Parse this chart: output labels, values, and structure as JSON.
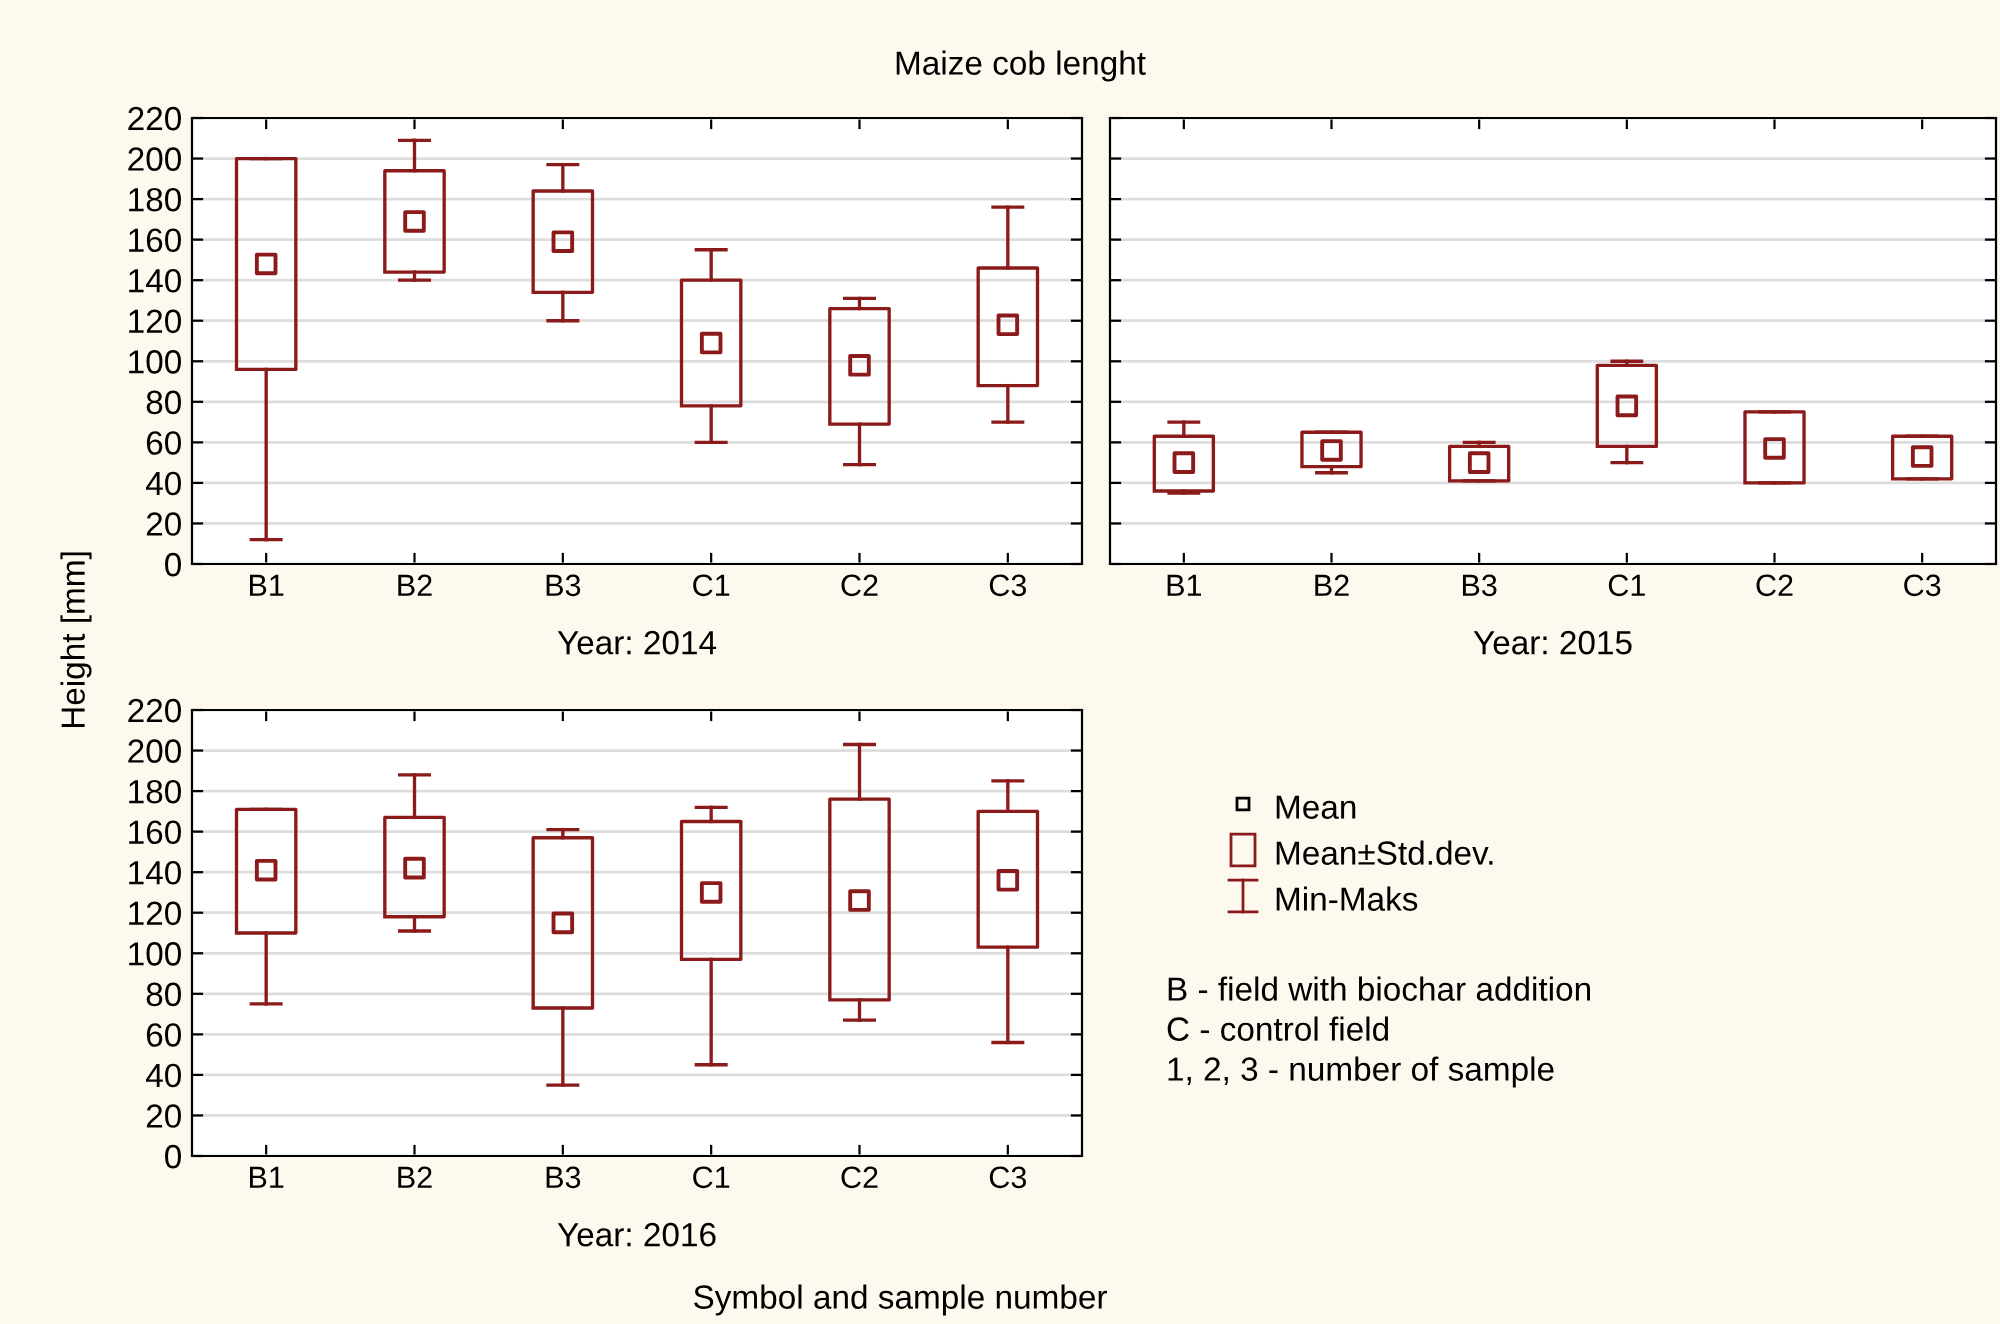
{
  "chart_data": [
    {
      "type": "box",
      "title": "Maize cob lenght",
      "xlabel": "Year: 2014",
      "ylabel": "Height [mm]",
      "annotations": [
        "Symbol and sample number"
      ],
      "categories": [
        "B1",
        "B2",
        "B3",
        "C1",
        "C2",
        "C3"
      ],
      "color": "#8b1a1a",
      "ylim": [
        0,
        220
      ],
      "yticks": [
        0,
        20,
        40,
        60,
        80,
        100,
        120,
        140,
        160,
        180,
        200,
        220
      ],
      "grid": "y",
      "marker": "square",
      "boxes": [
        {
          "low": 12,
          "q1": 96,
          "q3": 200,
          "high": 200,
          "mean": 148
        },
        {
          "low": 140,
          "q1": 144,
          "q3": 194,
          "high": 209,
          "mean": 169
        },
        {
          "low": 120,
          "q1": 134,
          "q3": 184,
          "high": 197,
          "mean": 159
        },
        {
          "low": 60,
          "q1": 78,
          "q3": 140,
          "high": 155,
          "mean": 109
        },
        {
          "low": 49,
          "q1": 69,
          "q3": 126,
          "high": 131,
          "mean": 98
        },
        {
          "low": 70,
          "q1": 88,
          "q3": 146,
          "high": 176,
          "mean": 118
        }
      ]
    },
    {
      "type": "box",
      "xlabel": "Year: 2015",
      "categories": [
        "B1",
        "B2",
        "B3",
        "C1",
        "C2",
        "C3"
      ],
      "color": "#8b1a1a",
      "ylim": [
        0,
        220
      ],
      "yticks": [
        0,
        20,
        40,
        60,
        80,
        100,
        120,
        140,
        160,
        180,
        200,
        220
      ],
      "grid": "y",
      "marker": "square",
      "tick_labels": "x",
      "boxes": [
        {
          "low": 35,
          "q1": 36,
          "q3": 63,
          "high": 70,
          "mean": 50
        },
        {
          "low": 45,
          "q1": 48,
          "q3": 65,
          "high": 65,
          "mean": 56
        },
        {
          "low": 41,
          "q1": 41,
          "q3": 58,
          "high": 60,
          "mean": 50
        },
        {
          "low": 50,
          "q1": 58,
          "q3": 98,
          "high": 100,
          "mean": 78
        },
        {
          "low": 40,
          "q1": 40,
          "q3": 75,
          "high": 75,
          "mean": 57
        },
        {
          "low": 42,
          "q1": 42,
          "q3": 63,
          "high": 63,
          "mean": 53
        }
      ]
    },
    {
      "type": "box",
      "xlabel": "Year: 2016",
      "categories": [
        "B1",
        "B2",
        "B3",
        "C1",
        "C2",
        "C3"
      ],
      "color": "#8b1a1a",
      "ylim": [
        0,
        220
      ],
      "yticks": [
        0,
        20,
        40,
        60,
        80,
        100,
        120,
        140,
        160,
        180,
        200,
        220
      ],
      "grid": "y",
      "marker": "square",
      "boxes": [
        {
          "low": 75,
          "q1": 110,
          "q3": 171,
          "high": 171,
          "mean": 141
        },
        {
          "low": 111,
          "q1": 118,
          "q3": 167,
          "high": 188,
          "mean": 142
        },
        {
          "low": 35,
          "q1": 73,
          "q3": 157,
          "high": 161,
          "mean": 115
        },
        {
          "low": 45,
          "q1": 97,
          "q3": 165,
          "high": 172,
          "mean": 130
        },
        {
          "low": 67,
          "q1": 77,
          "q3": 176,
          "high": 203,
          "mean": 126
        },
        {
          "low": 56,
          "q1": 103,
          "q3": 170,
          "high": 185,
          "mean": 136
        }
      ]
    },
    {
      "type": "other",
      "annotations": [
        "Mean",
        "Mean±Std.dev.",
        "Min-Maks",
        "B - field with biochar addition",
        "C - control field",
        "1, 2, 3 - number of sample"
      ]
    }
  ]
}
